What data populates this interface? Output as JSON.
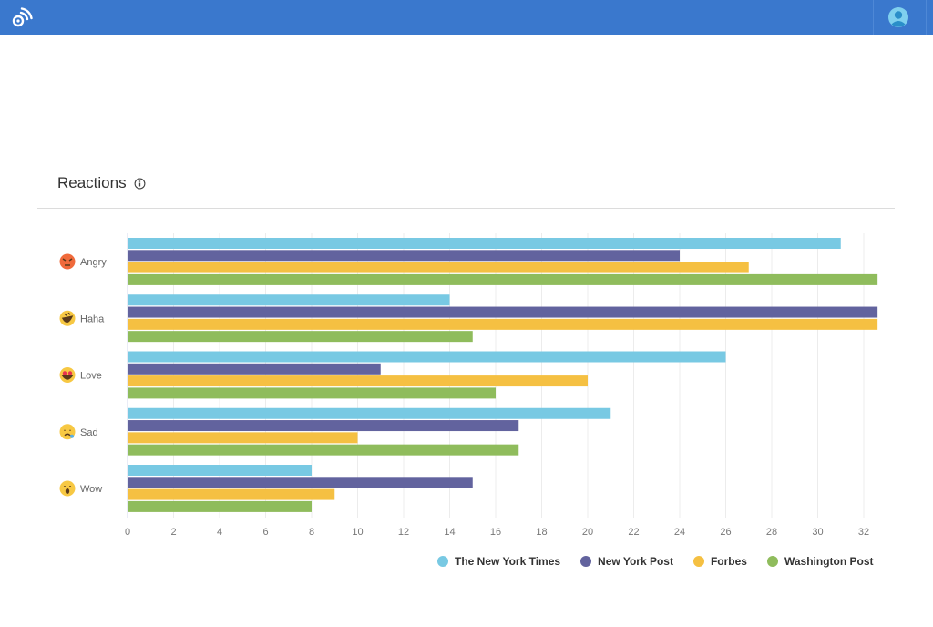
{
  "header": {
    "logo_icon": "rss-feed-icon",
    "avatar_icon": "user-avatar-icon",
    "bar_color": "#3a78cd"
  },
  "card": {
    "title": "Reactions",
    "info_icon": "info-icon"
  },
  "chart_data": {
    "type": "bar",
    "orientation": "horizontal",
    "title": "Reactions",
    "xlabel": "",
    "ylabel": "",
    "categories": [
      "Angry",
      "Haha",
      "Love",
      "Sad",
      "Wow"
    ],
    "category_icons": [
      "angry-emoji-icon",
      "haha-emoji-icon",
      "love-emoji-icon",
      "sad-emoji-icon",
      "wow-emoji-icon"
    ],
    "x_ticks": [
      "0",
      "2",
      "4",
      "6",
      "8",
      "10",
      "12",
      "14",
      "16",
      "18",
      "20",
      "22",
      "24",
      "26",
      "28",
      "30",
      "32"
    ],
    "xlim": [
      0,
      32.6
    ],
    "grid": true,
    "legend_position": "bottom-right",
    "series": [
      {
        "name": "The New York Times",
        "color": "#78c9e3",
        "values": [
          31,
          14,
          26,
          21,
          8
        ]
      },
      {
        "name": "New York Post",
        "color": "#62639e",
        "values": [
          24,
          33,
          11,
          17,
          15
        ]
      },
      {
        "name": "Forbes",
        "color": "#f5c042",
        "values": [
          27,
          33,
          20,
          10,
          9
        ]
      },
      {
        "name": "Washington Post",
        "color": "#8fbc5c",
        "values": [
          33,
          15,
          16,
          17,
          8
        ]
      }
    ]
  }
}
